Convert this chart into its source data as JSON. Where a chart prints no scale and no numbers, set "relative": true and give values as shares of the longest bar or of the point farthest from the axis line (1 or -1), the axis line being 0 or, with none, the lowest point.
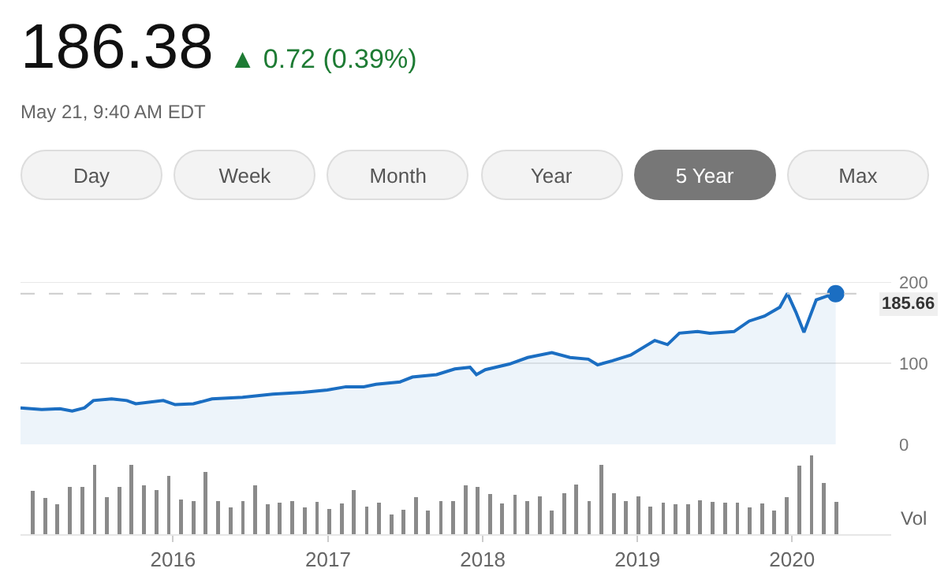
{
  "chart_data": [
    {
      "type": "area",
      "title": "186.38",
      "subtitle": "May 21, 9:40 AM EDT",
      "annotations": [
        "▲ 0.72 (0.39%)",
        "Day",
        "Week",
        "Month",
        "Year",
        "5 Year",
        "Max"
      ],
      "tick_labels": "y",
      "grid": "y",
      "xlim": [
        "2015-01-06",
        "2020-08-22"
      ],
      "ylim": [
        0,
        200
      ],
      "yticks": [
        0,
        100,
        200
      ],
      "ref_lines": [
        {
          "axis": "y",
          "value": 185.66,
          "label": "185.66",
          "color": "#cccccc",
          "line_style": "dashed"
        }
      ],
      "series": [
        {
          "color": "#1b6ec2",
          "x": [
            "2015-01-06",
            "2015-02-25",
            "2015-04-09",
            "2015-05-08",
            "2015-06-06",
            "2015-06-27",
            "2015-08-09",
            "2015-09-14",
            "2015-10-05",
            "2015-12-09",
            "2016-01-06",
            "2016-02-18",
            "2016-04-02",
            "2016-06-13",
            "2016-08-23",
            "2016-11-03",
            "2016-12-30",
            "2017-02-12",
            "2017-03-26",
            "2017-04-24",
            "2017-06-20",
            "2017-07-19",
            "2017-09-14",
            "2017-10-27",
            "2017-12-02",
            "2017-12-17",
            "2018-01-07",
            "2018-03-05",
            "2018-04-17",
            "2018-06-13",
            "2018-07-26",
            "2018-09-07",
            "2018-09-29",
            "2018-11-03",
            "2018-12-16",
            "2019-02-11",
            "2019-03-13",
            "2019-04-10",
            "2019-05-23",
            "2019-06-21",
            "2019-08-17",
            "2019-09-22",
            "2019-10-28",
            "2019-12-03",
            "2019-12-21",
            "2020-01-10",
            "2020-01-29",
            "2020-02-27",
            "2020-03-19",
            "2020-04-13"
          ],
          "values": [
            45,
            43,
            44,
            41,
            45,
            54,
            56,
            54,
            50,
            54,
            49,
            50,
            56,
            58,
            62,
            64,
            67,
            71,
            71,
            74,
            77,
            83,
            86,
            93,
            95,
            86,
            92,
            99,
            107,
            113,
            107,
            105,
            98,
            103,
            110,
            128,
            123,
            137,
            139,
            137,
            139,
            152,
            158,
            169,
            186,
            163,
            138,
            178,
            182,
            186
          ]
        },
        {
          "type": "scatter",
          "marker": "circle",
          "color": "#1b6ec2",
          "x": [
            "2020-04-13"
          ],
          "values": [
            185.66
          ]
        }
      ]
    },
    {
      "type": "bar",
      "relative": true,
      "ylabel": "Vol",
      "tick_labels": "x",
      "xlim": [
        "2015-01-06",
        "2020-08-22"
      ],
      "xticks": [
        {
          "value": "2016-01-01",
          "label": "2016"
        },
        {
          "value": "2017-01-01",
          "label": "2017"
        },
        {
          "value": "2018-01-01",
          "label": "2018"
        },
        {
          "value": "2019-01-01",
          "label": "2019"
        },
        {
          "value": "2020-01-01",
          "label": "2020"
        }
      ],
      "series": [
        {
          "color": "#8a8a8a",
          "x": [
            "2015-02-04",
            "2015-03-05",
            "2015-04-03",
            "2015-05-03",
            "2015-06-01",
            "2015-06-30",
            "2015-07-29",
            "2015-08-27",
            "2015-09-25",
            "2015-10-25",
            "2015-11-23",
            "2015-12-22",
            "2016-01-20",
            "2016-02-18",
            "2016-03-18",
            "2016-04-17",
            "2016-05-16",
            "2016-06-14",
            "2016-07-13",
            "2016-08-11",
            "2016-09-09",
            "2016-10-09",
            "2016-11-07",
            "2016-12-06",
            "2017-01-04",
            "2017-02-02",
            "2017-03-03",
            "2017-04-02",
            "2017-05-01",
            "2017-05-30",
            "2017-06-28",
            "2017-07-27",
            "2017-08-25",
            "2017-09-24",
            "2017-10-23",
            "2017-11-21",
            "2017-12-20",
            "2018-01-18",
            "2018-02-16",
            "2018-03-18",
            "2018-04-16",
            "2018-05-15",
            "2018-06-13",
            "2018-07-12",
            "2018-08-10",
            "2018-09-09",
            "2018-10-08",
            "2018-11-06",
            "2018-12-05",
            "2019-01-03",
            "2019-02-01",
            "2019-03-03",
            "2019-04-01",
            "2019-04-30",
            "2019-05-29",
            "2019-06-27",
            "2019-07-27",
            "2019-08-25",
            "2019-09-23",
            "2019-10-22",
            "2019-11-20",
            "2019-12-19",
            "2020-01-18",
            "2020-02-16",
            "2020-03-16",
            "2020-04-14"
          ],
          "values": [
            0.55,
            0.46,
            0.38,
            0.6,
            0.6,
            0.88,
            0.47,
            0.6,
            0.88,
            0.62,
            0.56,
            0.74,
            0.44,
            0.42,
            0.79,
            0.42,
            0.34,
            0.42,
            0.62,
            0.38,
            0.4,
            0.42,
            0.34,
            0.41,
            0.32,
            0.39,
            0.56,
            0.35,
            0.4,
            0.25,
            0.31,
            0.47,
            0.3,
            0.42,
            0.42,
            0.62,
            0.6,
            0.51,
            0.39,
            0.5,
            0.42,
            0.48,
            0.3,
            0.52,
            0.63,
            0.42,
            0.88,
            0.52,
            0.42,
            0.48,
            0.35,
            0.4,
            0.38,
            0.38,
            0.43,
            0.41,
            0.4,
            0.4,
            0.34,
            0.39,
            0.3,
            0.47,
            0.87,
            1,
            0.65,
            0.41
          ]
        }
      ]
    }
  ]
}
